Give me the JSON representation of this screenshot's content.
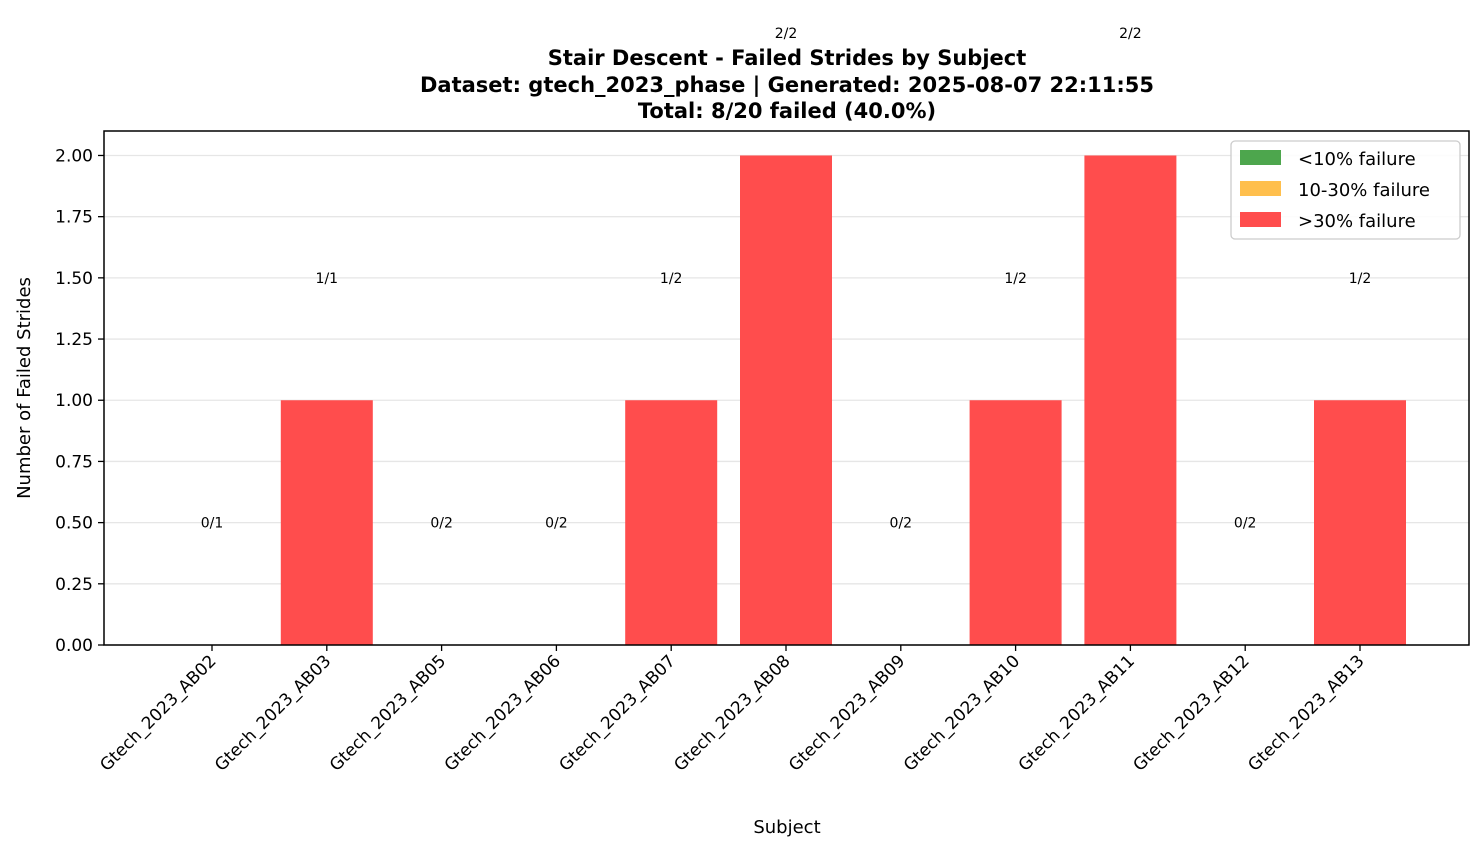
{
  "chart_data": {
    "type": "bar",
    "title": [
      "Stair Descent - Failed Strides by Subject",
      "Dataset: gtech_2023_phase | Generated: 2025-08-07 22:11:55",
      "Total: 8/20 failed (40.0%)"
    ],
    "xlabel": "Subject",
    "ylabel": "Number of Failed Strides",
    "categories": [
      "Gtech_2023_AB02",
      "Gtech_2023_AB03",
      "Gtech_2023_AB05",
      "Gtech_2023_AB06",
      "Gtech_2023_AB07",
      "Gtech_2023_AB08",
      "Gtech_2023_AB09",
      "Gtech_2023_AB10",
      "Gtech_2023_AB11",
      "Gtech_2023_AB12",
      "Gtech_2023_AB13"
    ],
    "values": [
      0,
      1,
      0,
      0,
      1,
      2,
      0,
      1,
      2,
      0,
      1
    ],
    "bar_labels": [
      "0/1",
      "1/1",
      "0/2",
      "0/2",
      "1/2",
      "2/2",
      "0/2",
      "1/2",
      "2/2",
      "0/2",
      "1/2"
    ],
    "bar_colors": [
      "#4da64d",
      "#ff4d4d",
      "#4da64d",
      "#4da64d",
      "#ff4d4d",
      "#ff4d4d",
      "#4da64d",
      "#ff4d4d",
      "#ff4d4d",
      "#4da64d",
      "#ff4d4d"
    ],
    "ylim": [
      0,
      2.1
    ],
    "yticks": [
      "0.00",
      "0.25",
      "0.50",
      "0.75",
      "1.00",
      "1.25",
      "1.50",
      "1.75",
      "2.00"
    ],
    "grid": "y-axis",
    "legend_position": "top-right",
    "legend": [
      {
        "label": "<10% failure",
        "color": "#4da64d"
      },
      {
        "label": "10-30% failure",
        "color": "#ffbf4d"
      },
      {
        "label": ">30% failure",
        "color": "#ff4d4d"
      }
    ]
  }
}
